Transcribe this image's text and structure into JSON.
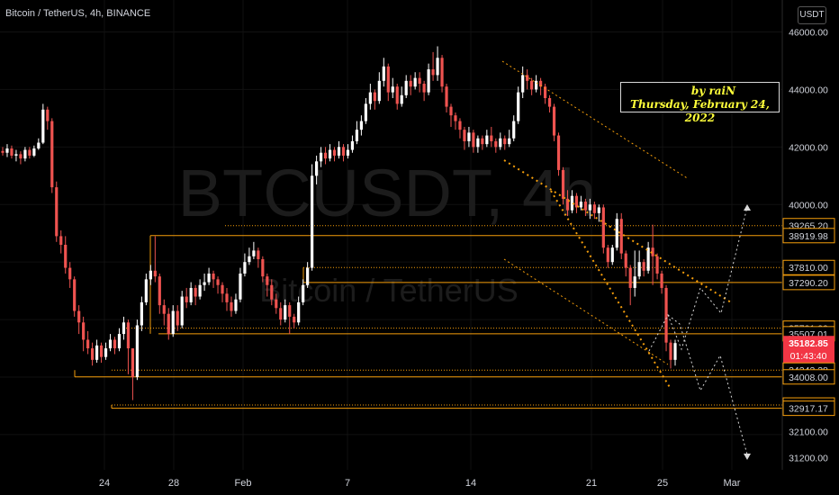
{
  "header": {
    "title": "Bitcoin / TetherUS, 4h, BINANCE"
  },
  "currency_button": "USDT",
  "watermark": {
    "symbol": "BTCUSDT, 4h",
    "name": "Bitcoin / TetherUS"
  },
  "annotation": {
    "author": "by raiN",
    "date": "Thursday, February 24, 2022"
  },
  "chart_data": {
    "type": "candlestick",
    "symbol": "BTCUSDT",
    "interval": "4h",
    "exchange": "BINANCE",
    "ylim": [
      30900,
      46500
    ],
    "y_ticks": [
      "46000.00",
      "44000.00",
      "42000.00",
      "40000.00",
      "39265.20",
      "38919.98",
      "37810.00",
      "37290.20",
      "35701.00",
      "35507.01",
      "35182.85",
      "34243.38",
      "34008.00",
      "33029.54",
      "32917.17",
      "32100.00",
      "31200.00"
    ],
    "x_ticks": [
      "24",
      "28",
      "Feb",
      "7",
      "14",
      "21",
      "25",
      "Mar"
    ],
    "last_price": {
      "value": "35182.85",
      "countdown": "01:43:40"
    },
    "levels": [
      {
        "price": 39265.2,
        "label": "39265.20",
        "style": "dotted"
      },
      {
        "price": 38919.98,
        "label": "38919.98",
        "style": "solid"
      },
      {
        "price": 37810.0,
        "label": "37810.00",
        "style": "dotted"
      },
      {
        "price": 37290.2,
        "label": "37290.20",
        "style": "solid"
      },
      {
        "price": 35701.0,
        "label": "35701.00",
        "style": "dotted"
      },
      {
        "price": 35507.01,
        "label": "35507.01",
        "style": "solid"
      },
      {
        "price": 34243.38,
        "label": "34243.38",
        "style": "dotted"
      },
      {
        "price": 34008.0,
        "label": "34008.00",
        "style": "solid"
      },
      {
        "price": 33029.54,
        "label": "33029.54",
        "style": "dotted"
      },
      {
        "price": 32917.17,
        "label": "32917.17",
        "style": "solid"
      }
    ],
    "candles": [
      [
        41860,
        41800,
        42000,
        41700
      ],
      [
        41800,
        41950,
        42100,
        41650
      ],
      [
        41950,
        41700,
        42050,
        41600
      ],
      [
        41700,
        41750,
        41900,
        41500
      ],
      [
        41750,
        41600,
        41850,
        41400
      ],
      [
        41600,
        41900,
        42000,
        41500
      ],
      [
        41900,
        41700,
        42000,
        41600
      ],
      [
        41700,
        41950,
        42050,
        41650
      ],
      [
        41950,
        42150,
        42300,
        41900
      ],
      [
        42150,
        43300,
        43500,
        42100
      ],
      [
        43300,
        42900,
        43400,
        42600
      ],
      [
        42900,
        40600,
        43000,
        40400
      ],
      [
        40600,
        38900,
        40800,
        38700
      ],
      [
        38900,
        38600,
        39100,
        38300
      ],
      [
        38600,
        37800,
        38900,
        37600
      ],
      [
        37800,
        37400,
        38000,
        37100
      ],
      [
        37400,
        36300,
        37500,
        36100
      ],
      [
        36300,
        35900,
        36500,
        35500
      ],
      [
        35900,
        35300,
        36100,
        34900
      ],
      [
        35300,
        35000,
        35600,
        34800
      ],
      [
        35000,
        34600,
        35200,
        34400
      ],
      [
        34600,
        35100,
        35300,
        34500
      ],
      [
        35100,
        34700,
        35200,
        34500
      ],
      [
        34700,
        35000,
        35200,
        34600
      ],
      [
        35000,
        35300,
        35500,
        34900
      ],
      [
        35300,
        35000,
        35400,
        34800
      ],
      [
        35000,
        35500,
        35700,
        34900
      ],
      [
        35500,
        35900,
        36100,
        35300
      ],
      [
        35900,
        35000,
        36000,
        34100
      ],
      [
        35000,
        34000,
        35000,
        33200
      ],
      [
        34000,
        35800,
        36000,
        33900
      ],
      [
        35800,
        36600,
        36800,
        35600
      ],
      [
        36600,
        37400,
        37600,
        36500
      ],
      [
        37400,
        37700,
        37900,
        37200
      ],
      [
        37700,
        37500,
        38900,
        37300
      ],
      [
        37500,
        36500,
        37600,
        36200
      ],
      [
        36500,
        36200,
        36700,
        35800
      ],
      [
        36200,
        35500,
        36400,
        35300
      ],
      [
        35500,
        36300,
        36500,
        35400
      ],
      [
        36300,
        35800,
        36500,
        35600
      ],
      [
        35800,
        36800,
        37000,
        35700
      ],
      [
        36800,
        36600,
        37100,
        36400
      ],
      [
        36600,
        37100,
        37300,
        36500
      ],
      [
        37100,
        36800,
        37200,
        36500
      ],
      [
        36800,
        37200,
        37400,
        36700
      ],
      [
        37200,
        37300,
        37600,
        37000
      ],
      [
        37300,
        37600,
        37800,
        37200
      ],
      [
        37600,
        37400,
        37700,
        37100
      ],
      [
        37400,
        37200,
        37500,
        36900
      ],
      [
        37200,
        36900,
        37300,
        36600
      ],
      [
        36900,
        36600,
        37100,
        36300
      ],
      [
        36600,
        36300,
        36800,
        36100
      ],
      [
        36300,
        36700,
        36900,
        36200
      ],
      [
        36700,
        37600,
        37800,
        36600
      ],
      [
        37600,
        38000,
        38300,
        37500
      ],
      [
        38000,
        38200,
        38500,
        37900
      ],
      [
        38200,
        38400,
        38700,
        38100
      ],
      [
        38400,
        38100,
        38500,
        37800
      ],
      [
        38100,
        37500,
        38200,
        37300
      ],
      [
        37500,
        37200,
        37600,
        36800
      ],
      [
        37200,
        36700,
        37400,
        36500
      ],
      [
        36700,
        36400,
        36900,
        36200
      ],
      [
        36400,
        36000,
        36600,
        35800
      ],
      [
        36000,
        36500,
        36700,
        35900
      ],
      [
        36500,
        36100,
        36600,
        35500
      ],
      [
        36100,
        35900,
        36200,
        35700
      ],
      [
        35900,
        36600,
        36800,
        35800
      ],
      [
        36600,
        37200,
        37400,
        36500
      ],
      [
        37200,
        37800,
        38000,
        37100
      ],
      [
        37800,
        41000,
        41400,
        37700
      ],
      [
        41000,
        41500,
        41700,
        40700
      ],
      [
        41500,
        41800,
        42000,
        41300
      ],
      [
        41800,
        41600,
        42000,
        41400
      ],
      [
        41600,
        41900,
        42100,
        41500
      ],
      [
        41900,
        41700,
        42000,
        41500
      ],
      [
        41700,
        42000,
        42200,
        41600
      ],
      [
        42000,
        41700,
        42100,
        41500
      ],
      [
        41700,
        41900,
        42100,
        41600
      ],
      [
        41900,
        42200,
        42400,
        41800
      ],
      [
        42200,
        42600,
        42900,
        42100
      ],
      [
        42600,
        42900,
        43100,
        42400
      ],
      [
        42900,
        43500,
        43700,
        42800
      ],
      [
        43500,
        43900,
        44200,
        43300
      ],
      [
        43900,
        43600,
        44000,
        43300
      ],
      [
        43600,
        44300,
        44600,
        43500
      ],
      [
        44300,
        44800,
        45100,
        44100
      ],
      [
        44800,
        43900,
        44900,
        43600
      ],
      [
        43900,
        44100,
        44400,
        43700
      ],
      [
        44100,
        43500,
        44200,
        43300
      ],
      [
        43500,
        43800,
        44100,
        43400
      ],
      [
        43800,
        44300,
        44500,
        43700
      ],
      [
        44300,
        44100,
        44500,
        43800
      ],
      [
        44100,
        44400,
        44600,
        44000
      ],
      [
        44400,
        44200,
        44600,
        43900
      ],
      [
        44200,
        43900,
        44300,
        43600
      ],
      [
        43900,
        44700,
        44900,
        43800
      ],
      [
        44700,
        44500,
        45300,
        44300
      ],
      [
        44500,
        45100,
        45500,
        44300
      ],
      [
        45100,
        44100,
        45200,
        43900
      ],
      [
        44100,
        43400,
        44200,
        43200
      ],
      [
        43400,
        43100,
        43500,
        42700
      ],
      [
        43100,
        42900,
        43200,
        42600
      ],
      [
        42900,
        42600,
        43000,
        42300
      ],
      [
        42600,
        42200,
        42700,
        41900
      ],
      [
        42200,
        42500,
        42700,
        42000
      ],
      [
        42500,
        42000,
        42600,
        41800
      ],
      [
        42000,
        42300,
        42400,
        41800
      ],
      [
        42300,
        42100,
        42400,
        41900
      ],
      [
        42100,
        42400,
        42600,
        42000
      ],
      [
        42400,
        42200,
        42700,
        42000
      ],
      [
        42200,
        42000,
        42300,
        41800
      ],
      [
        42000,
        42300,
        42500,
        41900
      ],
      [
        42300,
        42100,
        42400,
        41900
      ],
      [
        42100,
        42300,
        42600,
        42000
      ],
      [
        42300,
        42900,
        43100,
        42200
      ],
      [
        42900,
        43900,
        44100,
        42800
      ],
      [
        43900,
        44500,
        44800,
        43700
      ],
      [
        44500,
        44300,
        44700,
        44000
      ],
      [
        44300,
        44000,
        44400,
        43800
      ],
      [
        44000,
        44300,
        44500,
        43900
      ],
      [
        44300,
        44100,
        44400,
        43800
      ],
      [
        44100,
        43700,
        44200,
        43500
      ],
      [
        43700,
        43400,
        43800,
        43200
      ],
      [
        43400,
        42400,
        43500,
        42200
      ],
      [
        42400,
        41200,
        42500,
        41000
      ],
      [
        41200,
        40200,
        41300,
        40000
      ],
      [
        40200,
        39800,
        40500,
        39600
      ],
      [
        39800,
        40300,
        40500,
        39700
      ],
      [
        40300,
        39900,
        40400,
        39700
      ],
      [
        39900,
        40100,
        40300,
        39800
      ],
      [
        40100,
        39800,
        40200,
        39600
      ],
      [
        39800,
        40000,
        40200,
        39500
      ],
      [
        40000,
        39700,
        40100,
        39500
      ],
      [
        39700,
        39900,
        40000,
        39400
      ],
      [
        39900,
        38500,
        40000,
        38300
      ],
      [
        38500,
        38000,
        38600,
        37800
      ],
      [
        38000,
        38500,
        38600,
        37900
      ],
      [
        38500,
        39500,
        39700,
        38400
      ],
      [
        39500,
        38300,
        39700,
        38100
      ],
      [
        38300,
        37800,
        38400,
        37500
      ],
      [
        37800,
        37100,
        37900,
        36500
      ],
      [
        37100,
        37500,
        38400,
        36800
      ],
      [
        37500,
        38000,
        38400,
        37400
      ],
      [
        38000,
        37700,
        38100,
        37500
      ],
      [
        37700,
        38500,
        38700,
        37600
      ],
      [
        38500,
        38200,
        39300,
        37200
      ],
      [
        38200,
        37600,
        38300,
        37400
      ],
      [
        37600,
        37100,
        37700,
        36900
      ],
      [
        37100,
        35200,
        37200,
        34900
      ],
      [
        35200,
        34600,
        35300,
        34300
      ],
      [
        34600,
        35183,
        35300,
        34400
      ]
    ]
  }
}
